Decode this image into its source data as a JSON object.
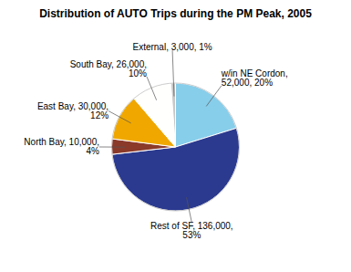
{
  "chart_data": {
    "type": "pie",
    "title": "Distribution of AUTO Trips during the PM Peak, 2005",
    "values": [
      52000,
      136000,
      10000,
      30000,
      26000,
      3000
    ],
    "value_labels": [
      "w/in NE Cordon,\n52,000, 20%",
      "Rest of SF, 136,000,\n53%",
      "North Bay, 10,000,\n4%",
      "East Bay, 30,000,\n12%",
      "South Bay, 26,000,\n10%",
      "External, 3,000, 1%"
    ],
    "colors": [
      "#87CEEB",
      "#2B3A8F",
      "#8B3A2A",
      "#F0A800",
      "#FFFFFE",
      "#C8C8C8"
    ],
    "data_labels": true
  }
}
